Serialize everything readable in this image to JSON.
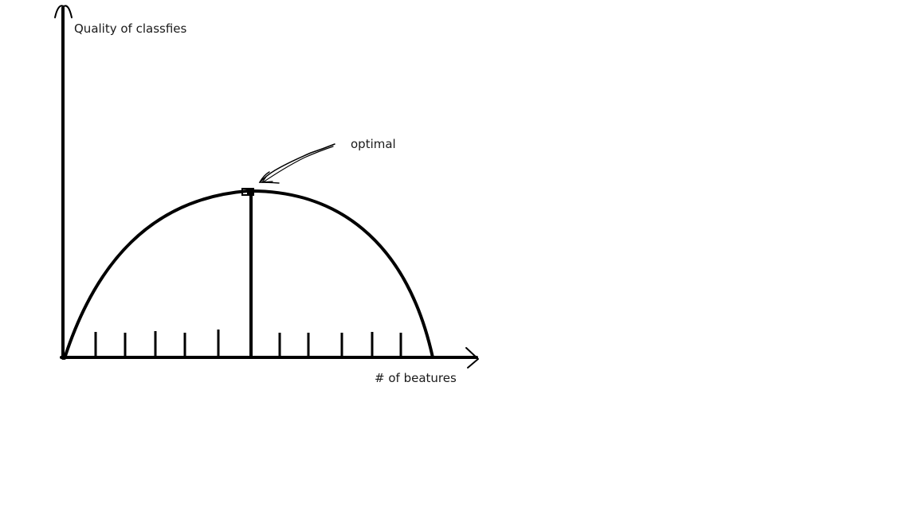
{
  "diagram": {
    "y_axis_label": "Quality of classfies",
    "x_axis_label": "# of beatures",
    "annotation_label": "optimal",
    "tick_mark_count": 10,
    "stroke_color": "#000000",
    "text_color": "#1a1a1a",
    "background_color": "#ffffff"
  }
}
